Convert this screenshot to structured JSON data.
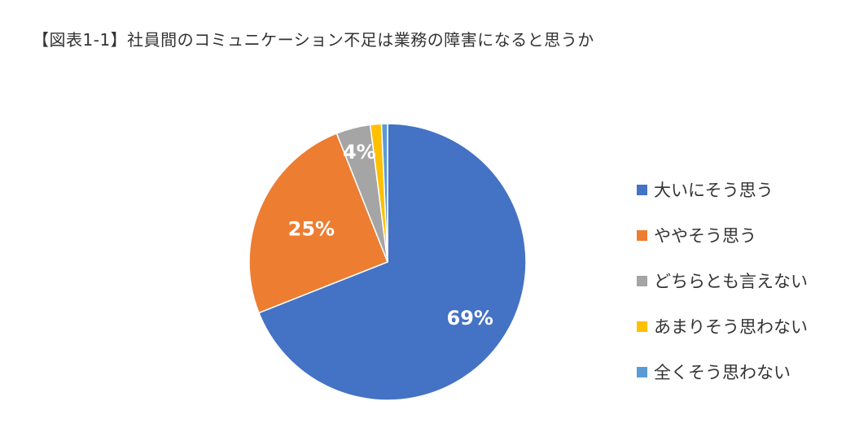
{
  "page": {
    "title": "【図表1-1】社員間のコミュニケーション不足は業務の障害になると思うか"
  },
  "chart_data": {
    "type": "pie",
    "title": "【図表1-1】社員間のコミュニケーション不足は業務の障害になると思うか",
    "categories": [
      "大いにそう思う",
      "ややそう思う",
      "どちらとも言えない",
      "あまりそう思わない",
      "全くそう思わない"
    ],
    "values": [
      69,
      25,
      4,
      1.3,
      0.7
    ],
    "data_labels": [
      "69%",
      "25%",
      "4%",
      "",
      ""
    ],
    "colors": [
      "#4472C4",
      "#ED7D31",
      "#A5A5A5",
      "#FFC000",
      "#5B9BD5"
    ],
    "label_color": "#ffffff",
    "legend_position": "right",
    "start": "top",
    "direction": "clockwise"
  }
}
